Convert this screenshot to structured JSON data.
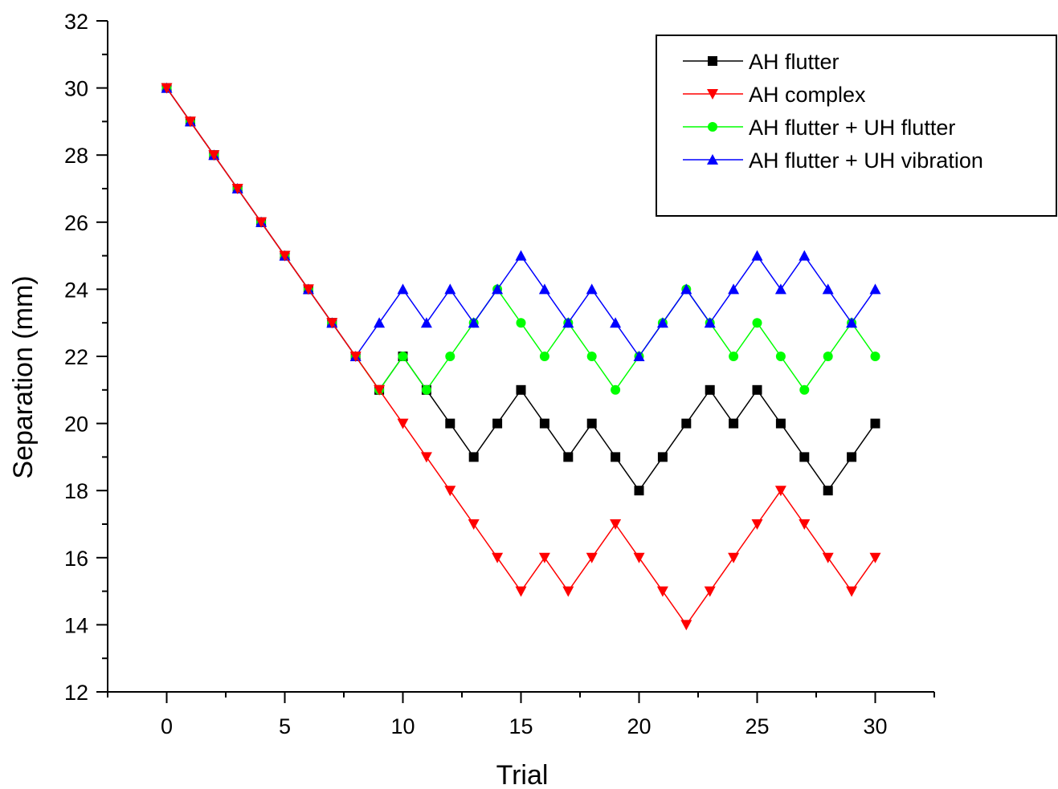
{
  "chart_data": {
    "type": "line",
    "title": "",
    "xlabel": "Trial",
    "ylabel": "Separation (mm)",
    "xlim": [
      -2.5,
      32.5
    ],
    "ylim": [
      12,
      32
    ],
    "x_ticks": [
      0,
      5,
      10,
      15,
      20,
      25,
      30
    ],
    "y_ticks": [
      12,
      14,
      16,
      18,
      20,
      22,
      24,
      26,
      28,
      30,
      32
    ],
    "grid": false,
    "legend_position": "top-right",
    "x": [
      0,
      1,
      2,
      3,
      4,
      5,
      6,
      7,
      8,
      9,
      10,
      11,
      12,
      13,
      14,
      15,
      16,
      17,
      18,
      19,
      20,
      21,
      22,
      23,
      24,
      25,
      26,
      27,
      28,
      29,
      30
    ],
    "series": [
      {
        "name": "AH flutter",
        "color": "#000000",
        "marker": "square",
        "values": [
          30,
          29,
          28,
          27,
          26,
          25,
          24,
          23,
          22,
          21,
          22,
          21,
          20,
          19,
          20,
          21,
          20,
          19,
          20,
          19,
          18,
          19,
          20,
          21,
          20,
          21,
          20,
          19,
          18,
          19,
          20
        ]
      },
      {
        "name": "AH complex",
        "color": "#ff0000",
        "marker": "triangle-down",
        "values": [
          30,
          29,
          28,
          27,
          26,
          25,
          24,
          23,
          22,
          21,
          20,
          19,
          18,
          17,
          16,
          15,
          16,
          15,
          16,
          17,
          16,
          15,
          14,
          15,
          16,
          17,
          18,
          17,
          16,
          15,
          16
        ]
      },
      {
        "name": "AH flutter + UH flutter",
        "color": "#00ff00",
        "marker": "circle",
        "values": [
          30,
          29,
          28,
          27,
          26,
          25,
          24,
          23,
          22,
          21,
          22,
          21,
          22,
          23,
          24,
          23,
          22,
          23,
          22,
          21,
          22,
          23,
          24,
          23,
          22,
          23,
          22,
          21,
          22,
          23,
          22
        ]
      },
      {
        "name": "AH flutter + UH vibration",
        "color": "#0000ff",
        "marker": "triangle-up",
        "values": [
          30,
          29,
          28,
          27,
          26,
          25,
          24,
          23,
          22,
          23,
          24,
          23,
          24,
          23,
          24,
          25,
          24,
          23,
          24,
          23,
          22,
          23,
          24,
          23,
          24,
          25,
          24,
          25,
          24,
          23,
          24
        ]
      }
    ]
  }
}
